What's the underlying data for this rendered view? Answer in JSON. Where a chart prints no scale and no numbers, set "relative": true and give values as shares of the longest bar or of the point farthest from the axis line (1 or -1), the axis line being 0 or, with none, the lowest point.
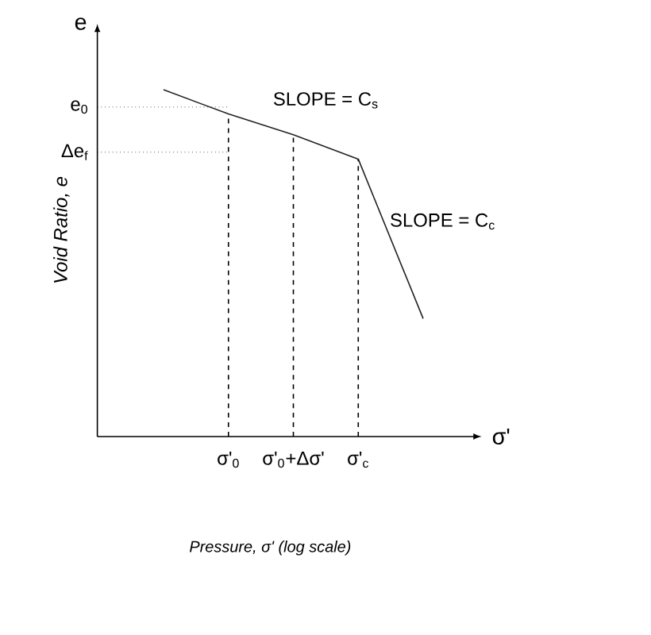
{
  "chart_data": {
    "type": "line",
    "relative": true,
    "xlabel": "Pressure, σ' (log scale)",
    "ylabel": "Void Ratio, e",
    "categories": [
      null,
      "σ'$_{0}$",
      "σ'$_{0}$+Δσ'",
      "σ'$_{c}$",
      null
    ],
    "series": [
      {
        "color": "#222222",
        "values": [
          1,
          0.93,
          0.87,
          0.8,
          0.34
        ]
      }
    ],
    "marker": "none",
    "line_style": "solid",
    "grid": "x",
    "ref_lines": [
      {
        "axis": "y",
        "value": 0.95,
        "label": "e$_{0}$",
        "line_style": "dotted"
      },
      {
        "axis": "y",
        "value": 0.82,
        "label": "Δe$_{f}$",
        "line_style": "dotted"
      }
    ],
    "annotations": [
      "SLOPE = C$_{s}$",
      "SLOPE = C$_{c}$",
      "e",
      "σ'"
    ]
  }
}
